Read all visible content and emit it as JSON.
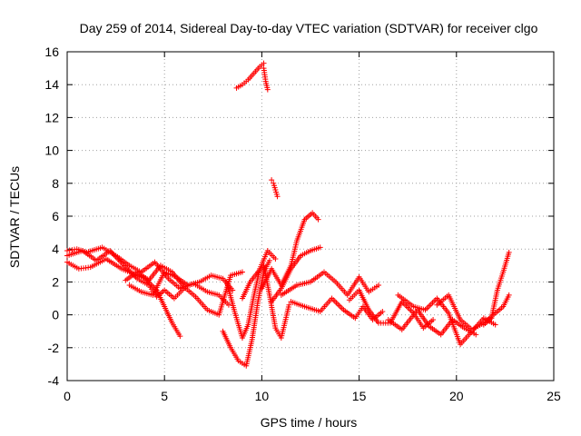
{
  "chart_data": {
    "type": "scatter",
    "title": "Day 259 of 2014, Sidereal Day-to-day VTEC variation (SDTVAR) for receiver clgo",
    "xlabel": "GPS time / hours",
    "ylabel": "SDTVAR / TECUs",
    "xlim": [
      0,
      25
    ],
    "ylim": [
      -4,
      16
    ],
    "xticks": [
      0,
      5,
      10,
      15,
      20,
      25
    ],
    "yticks": [
      -4,
      -2,
      0,
      2,
      4,
      6,
      8,
      10,
      12,
      14,
      16
    ],
    "grid": true,
    "marker": "plus",
    "color": "#ff0000",
    "series": [
      {
        "name": "s1",
        "x": [
          0,
          0.6,
          1.2,
          2.0,
          2.8,
          3.4,
          4.0,
          4.6,
          5.0,
          5.4,
          5.8
        ],
        "y": [
          3.2,
          2.8,
          2.9,
          3.4,
          2.8,
          2.5,
          2.2,
          1.5,
          0.5,
          -0.5,
          -1.3
        ]
      },
      {
        "name": "s2",
        "x": [
          0,
          0.8,
          1.5,
          2.2,
          3.0,
          3.6,
          4.2,
          4.6,
          5.0,
          5.5,
          6.0
        ],
        "y": [
          3.6,
          3.9,
          3.3,
          3.9,
          2.9,
          2.2,
          1.8,
          1.1,
          1.5,
          1.0,
          1.6
        ]
      },
      {
        "name": "s3",
        "x": [
          0,
          0.5,
          1.0,
          1.8,
          2.5,
          3.2,
          3.8,
          4.5,
          5.2,
          5.8,
          6.5,
          7.2,
          7.8,
          8.3
        ],
        "y": [
          3.9,
          4.0,
          3.8,
          4.1,
          3.6,
          3.0,
          2.6,
          3.2,
          2.2,
          1.6,
          1.9,
          1.4,
          1.2,
          0.6
        ]
      },
      {
        "name": "s4",
        "x": [
          3.2,
          3.8,
          4.4,
          5.0,
          5.6,
          6.2,
          6.8,
          7.4,
          8.0,
          8.5
        ],
        "y": [
          1.8,
          1.4,
          1.2,
          2.6,
          2.3,
          1.8,
          2.0,
          2.4,
          2.2,
          1.5
        ]
      },
      {
        "name": "s5",
        "x": [
          3.0,
          3.6,
          4.2,
          4.8,
          5.4,
          6.0,
          6.6,
          7.2,
          7.8,
          8.4,
          9.0
        ],
        "y": [
          2.1,
          2.6,
          2.1,
          3.0,
          2.6,
          1.7,
          1.1,
          0.3,
          0.0,
          2.4,
          2.6
        ]
      },
      {
        "name": "s6",
        "x": [
          8.0,
          8.4,
          8.8,
          9.2,
          9.5,
          9.8,
          10.1,
          10.4
        ],
        "y": [
          -1.0,
          -2.0,
          -2.8,
          -3.1,
          -1.5,
          0.8,
          2.6,
          3.3
        ]
      },
      {
        "name": "s7",
        "x": [
          8.2,
          8.6,
          9.0,
          9.3,
          9.6,
          9.9,
          10.3,
          10.7
        ],
        "y": [
          2.0,
          0.2,
          -1.4,
          -0.6,
          1.2,
          2.8,
          3.9,
          3.4
        ]
      },
      {
        "name": "s8",
        "x": [
          9.0,
          9.4,
          9.8,
          10.1,
          10.4,
          10.7,
          11.0,
          11.4
        ],
        "y": [
          1.0,
          2.0,
          2.6,
          3.0,
          1.2,
          -0.8,
          -1.4,
          0.6
        ]
      },
      {
        "name": "s9",
        "x": [
          10.0,
          10.5,
          11.0,
          11.5,
          11.8,
          12.2,
          12.6,
          12.9
        ],
        "y": [
          1.6,
          2.8,
          1.8,
          3.0,
          4.5,
          5.8,
          6.2,
          5.8
        ]
      },
      {
        "name": "s10",
        "x": [
          10.5,
          11.0,
          11.5,
          12.0,
          12.5,
          13.0
        ],
        "y": [
          0.8,
          1.6,
          2.8,
          3.6,
          3.9,
          4.1
        ]
      },
      {
        "name": "s11",
        "x": [
          11.0,
          11.8,
          12.5,
          13.2,
          13.8,
          14.4,
          15.0,
          15.5,
          16.0
        ],
        "y": [
          1.2,
          1.8,
          2.0,
          2.6,
          2.0,
          1.2,
          2.3,
          1.4,
          1.8
        ]
      },
      {
        "name": "s12",
        "x": [
          11.5,
          12.2,
          13.0,
          13.6,
          14.2,
          14.8,
          15.2,
          15.7,
          16.2
        ],
        "y": [
          0.8,
          0.5,
          0.2,
          1.0,
          0.3,
          -0.2,
          0.5,
          -0.3,
          0.2
        ]
      },
      {
        "name": "s13",
        "x": [
          14.5,
          15.0,
          15.5,
          16.0,
          16.6,
          17.2,
          17.8,
          18.3,
          18.8
        ],
        "y": [
          0.9,
          1.5,
          0.3,
          -0.5,
          -0.5,
          0.8,
          0.1,
          -0.8,
          -0.3
        ]
      },
      {
        "name": "s14",
        "x": [
          16.5,
          17.2,
          18.0,
          18.6,
          19.2,
          19.8,
          20.4,
          21.0
        ],
        "y": [
          -0.3,
          -0.9,
          0.3,
          -0.7,
          -1.2,
          -0.3,
          -0.8,
          -1.2
        ]
      },
      {
        "name": "s15",
        "x": [
          17.0,
          17.8,
          18.4,
          19.0,
          19.6,
          20.2,
          20.8,
          21.4,
          22.0
        ],
        "y": [
          1.2,
          0.5,
          0.3,
          1.0,
          0.1,
          -1.8,
          -1.0,
          -0.2,
          -0.6
        ]
      },
      {
        "name": "s16",
        "x": [
          19.0,
          19.6,
          20.2,
          20.8,
          21.4,
          22.0,
          22.4,
          22.7
        ],
        "y": [
          0.6,
          1.2,
          -0.3,
          -0.9,
          -0.5,
          0.1,
          0.5,
          1.2
        ]
      },
      {
        "name": "s17",
        "x": [
          21.4,
          21.8,
          22.1,
          22.4,
          22.7
        ],
        "y": [
          -0.6,
          -0.2,
          1.5,
          2.6,
          3.8
        ]
      },
      {
        "name": "s18",
        "x": [
          8.7,
          9.0,
          9.3,
          9.6,
          9.9,
          10.1
        ],
        "y": [
          13.8,
          14.0,
          14.3,
          14.7,
          15.1,
          15.3
        ]
      },
      {
        "name": "s19",
        "x": [
          10.1,
          10.2,
          10.3
        ],
        "y": [
          15.0,
          14.2,
          13.7
        ]
      },
      {
        "name": "s20",
        "x": [
          10.5,
          10.6,
          10.7,
          10.8
        ],
        "y": [
          8.2,
          8.0,
          7.6,
          7.2
        ]
      }
    ]
  }
}
